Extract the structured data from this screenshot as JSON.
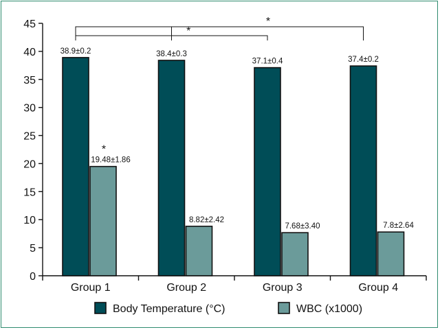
{
  "chart_data": {
    "type": "bar",
    "categories": [
      "Group 1",
      "Group 2",
      "Group 3",
      "Group 4"
    ],
    "series": [
      {
        "name": "Body Temperature (°C)",
        "color": "#004d57",
        "values": [
          38.9,
          38.4,
          37.1,
          37.4
        ],
        "labels": [
          "38.9±0.2",
          "38.4±0.3",
          "37.1±0.4",
          "37.4±0.2"
        ]
      },
      {
        "name": "WBC (x1000)",
        "color": "#6b9b9a",
        "values": [
          19.48,
          8.82,
          7.68,
          7.8
        ],
        "labels": [
          "19.48±1.86",
          "8.82±2.42",
          "7.68±3.40",
          "7.8±2.64"
        ]
      }
    ],
    "ylim": [
      0,
      45
    ],
    "yticks": [
      0,
      5,
      10,
      15,
      20,
      25,
      30,
      35,
      40,
      45
    ],
    "grid": false,
    "legend_position": "bottom",
    "significance": {
      "bar_star": "*",
      "bracket_stars": [
        "*",
        "*"
      ]
    }
  }
}
